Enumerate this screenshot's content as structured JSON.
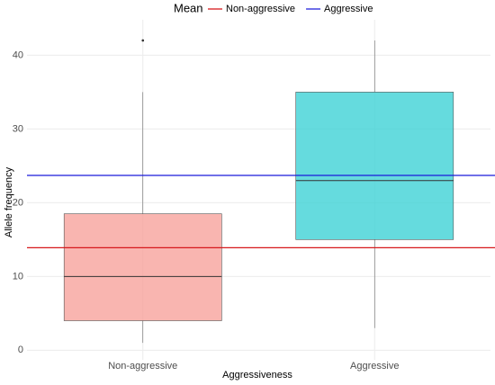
{
  "chart_data": {
    "type": "box",
    "x_label": "Aggressiveness",
    "y_label": "Allele frequency",
    "ylim": [
      -1.3,
      44.8
    ],
    "yticks": [
      0,
      10,
      20,
      30,
      40
    ],
    "grid": true,
    "legend_position": "top",
    "boxes": [
      {
        "category": "Non-aggressive",
        "color": "#f8a29c",
        "min": 1,
        "q1": 4,
        "median": 10,
        "q3": 18.5,
        "max": 35,
        "outliers": [
          42
        ]
      },
      {
        "category": "Aggressive",
        "color": "#3fd2d6",
        "min": 3,
        "q1": 15,
        "median": 23,
        "q3": 35,
        "max": 42,
        "outliers": []
      }
    ],
    "mean_lines": {
      "title": "Mean",
      "series": [
        {
          "name": "Non-aggressive",
          "color": "#d7191c",
          "value": 13.9
        },
        {
          "name": "Aggressive",
          "color": "#1a1adb",
          "value": 23.7
        }
      ]
    }
  }
}
